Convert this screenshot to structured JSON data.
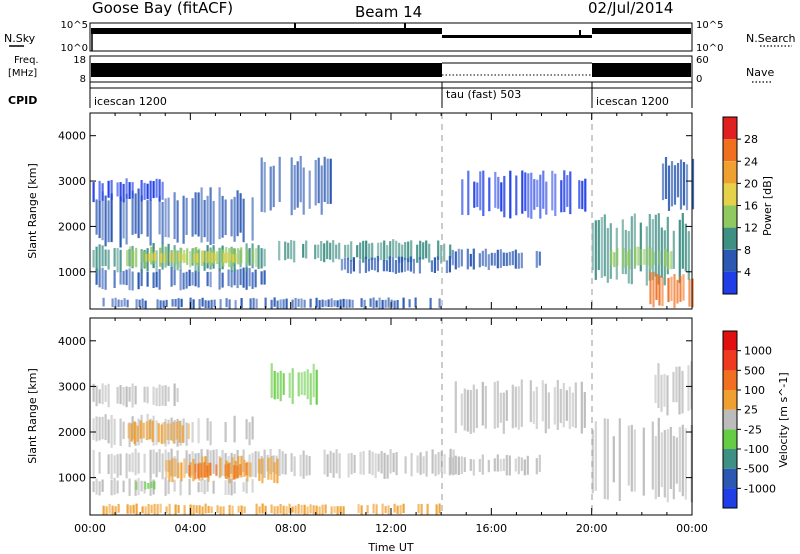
{
  "header": {
    "station": "Goose Bay (fitACF)",
    "beam": "Beam 14",
    "date": "02/Jul/2014"
  },
  "top_panels": {
    "nsky_label": "N.Sky",
    "nsky_ticks": [
      "10^5",
      "10^0"
    ],
    "nsearch_label": "N.Search",
    "nsearch_ticks": [
      "10^5",
      "10^0"
    ],
    "freq_label": "Freq.",
    "freq_unit": "[MHz]",
    "freq_ticks": [
      "18",
      "8"
    ],
    "nave_label": "Nave",
    "nave_ticks": [
      "60",
      "0"
    ],
    "cpid_label": "CPID",
    "cpid_segments": [
      {
        "label": "icescan 1200",
        "start_h": 0,
        "end_h": 14
      },
      {
        "label": "tau (fast) 503",
        "start_h": 14,
        "end_h": 20
      },
      {
        "label": "icescan 1200",
        "start_h": 20,
        "end_h": 24
      }
    ]
  },
  "chart_data": [
    {
      "type": "heatmap",
      "name": "power",
      "ylabel": "Slant Range [km]",
      "xlabel": "",
      "x_range_h": [
        0,
        24
      ],
      "ylim": [
        180,
        4500
      ],
      "y_ticks": [
        1000,
        2000,
        3000,
        4000
      ],
      "colorbar": {
        "label": "Power [dB]",
        "tick_labels": [
          "4",
          "8",
          "12",
          "16",
          "20",
          "24",
          "28"
        ],
        "colors": [
          "#1f3ee6",
          "#2a58b3",
          "#3e8f84",
          "#8fc95f",
          "#e6d24a",
          "#f0a030",
          "#f07020",
          "#e02020"
        ]
      },
      "bands": [
        {
          "t0": 0.1,
          "t1": 7.0,
          "r0": 650,
          "r1": 1050,
          "color": "#2a58b3"
        },
        {
          "t0": 0.1,
          "t1": 7.2,
          "r0": 1050,
          "r1": 1550,
          "color": "#3e8f84"
        },
        {
          "t0": 1.2,
          "t1": 6.8,
          "r0": 1150,
          "r1": 1500,
          "color": "#8fc95f"
        },
        {
          "t0": 2.2,
          "t1": 5.8,
          "r0": 1220,
          "r1": 1420,
          "color": "#e6d24a"
        },
        {
          "t0": 0.1,
          "t1": 6.5,
          "r0": 1700,
          "r1": 2700,
          "color": "#2a58b3"
        },
        {
          "t0": 0.1,
          "t1": 3.0,
          "r0": 2600,
          "r1": 3000,
          "color": "#1f3ee6"
        },
        {
          "t0": 6.8,
          "t1": 9.6,
          "r0": 2400,
          "r1": 3400,
          "color": "#2a58b3"
        },
        {
          "t0": 7.5,
          "t1": 14.5,
          "r0": 1250,
          "r1": 1650,
          "color": "#3e8f84"
        },
        {
          "t0": 10.0,
          "t1": 14.5,
          "r0": 1000,
          "r1": 1300,
          "color": "#2a58b3"
        },
        {
          "t0": 14.3,
          "t1": 18.0,
          "r0": 1100,
          "r1": 1450,
          "color": "#2a58b3"
        },
        {
          "t0": 14.8,
          "t1": 19.8,
          "r0": 2300,
          "r1": 3100,
          "color": "#1f3ee6"
        },
        {
          "t0": 20.0,
          "t1": 24.0,
          "r0": 900,
          "r1": 2100,
          "color": "#3e8f84"
        },
        {
          "t0": 20.5,
          "t1": 23.2,
          "r0": 1100,
          "r1": 1500,
          "color": "#8fc95f"
        },
        {
          "t0": 22.3,
          "t1": 24.0,
          "r0": 300,
          "r1": 900,
          "color": "#f07020"
        },
        {
          "t0": 22.8,
          "t1": 24.0,
          "r0": 2500,
          "r1": 3400,
          "color": "#2a58b3"
        },
        {
          "t0": 0.5,
          "t1": 14.0,
          "r0": 200,
          "r1": 400,
          "color": "#2a58b3"
        }
      ]
    },
    {
      "type": "heatmap",
      "name": "velocity",
      "ylabel": "Slant Range [km]",
      "xlabel": "Time UT",
      "x_range_h": [
        0,
        24
      ],
      "x_tick_labels": [
        "00:00",
        "04:00",
        "08:00",
        "12:00",
        "16:00",
        "20:00",
        "00:00"
      ],
      "ylim": [
        180,
        4500
      ],
      "y_ticks": [
        1000,
        2000,
        3000,
        4000
      ],
      "colorbar": {
        "label": "Velocity [m s^-1]",
        "tick_labels": [
          "1000",
          "500",
          "100",
          "25",
          "-25",
          "-100",
          "-500",
          "-1000"
        ],
        "colors": [
          "#1f3ee6",
          "#2a58b3",
          "#3e8f84",
          "#66cc44",
          "#bcbcbc",
          "#f0a030",
          "#f07020",
          "#f03a20",
          "#e01010"
        ]
      },
      "bands": [
        {
          "t0": 0.1,
          "t1": 14.5,
          "r0": 1050,
          "r1": 1550,
          "color": "#bcbcbc"
        },
        {
          "t0": 3.0,
          "t1": 7.5,
          "r0": 950,
          "r1": 1400,
          "color": "#f0a030"
        },
        {
          "t0": 3.8,
          "t1": 6.5,
          "r0": 1000,
          "r1": 1300,
          "color": "#f07020"
        },
        {
          "t0": 0.1,
          "t1": 6.5,
          "r0": 1750,
          "r1": 2300,
          "color": "#bcbcbc"
        },
        {
          "t0": 1.5,
          "t1": 4.0,
          "r0": 1800,
          "r1": 2200,
          "color": "#f0a030"
        },
        {
          "t0": 0.1,
          "t1": 6.5,
          "r0": 650,
          "r1": 950,
          "color": "#bcbcbc"
        },
        {
          "t0": 1.8,
          "t1": 2.8,
          "r0": 750,
          "r1": 900,
          "color": "#66cc44"
        },
        {
          "t0": 7.2,
          "t1": 9.0,
          "r0": 2700,
          "r1": 3400,
          "color": "#66cc44"
        },
        {
          "t0": 0.1,
          "t1": 3.5,
          "r0": 2600,
          "r1": 3000,
          "color": "#bcbcbc"
        },
        {
          "t0": 14.3,
          "t1": 19.8,
          "r0": 2100,
          "r1": 3000,
          "color": "#bcbcbc"
        },
        {
          "t0": 14.3,
          "t1": 18.0,
          "r0": 1100,
          "r1": 1450,
          "color": "#bcbcbc"
        },
        {
          "t0": 20.0,
          "t1": 24.0,
          "r0": 700,
          "r1": 2100,
          "color": "#bcbcbc"
        },
        {
          "t0": 22.5,
          "t1": 24.0,
          "r0": 2500,
          "r1": 3400,
          "color": "#bcbcbc"
        },
        {
          "t0": 0.5,
          "t1": 14.0,
          "r0": 200,
          "r1": 400,
          "color": "#f0a030"
        }
      ]
    }
  ]
}
